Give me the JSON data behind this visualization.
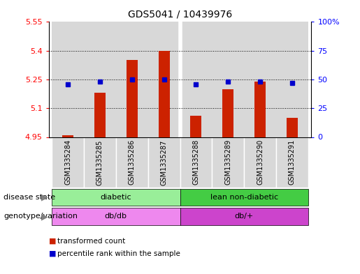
{
  "title": "GDS5041 / 10439976",
  "samples": [
    "GSM1335284",
    "GSM1335285",
    "GSM1335286",
    "GSM1335287",
    "GSM1335288",
    "GSM1335289",
    "GSM1335290",
    "GSM1335291"
  ],
  "transformed_count": [
    4.96,
    5.18,
    5.35,
    5.4,
    5.06,
    5.2,
    5.24,
    5.05
  ],
  "percentile_rank": [
    46,
    48,
    50,
    50,
    46,
    48,
    48,
    47
  ],
  "bar_color": "#cc2200",
  "dot_color": "#0000cc",
  "ylim_left": [
    4.95,
    5.55
  ],
  "ylim_right": [
    0,
    100
  ],
  "yticks_left": [
    4.95,
    5.1,
    5.25,
    5.4,
    5.55
  ],
  "yticks_right": [
    0,
    25,
    50,
    75,
    100
  ],
  "ytick_labels_left": [
    "4.95",
    "5.1",
    "5.25",
    "5.4",
    "5.55"
  ],
  "ytick_labels_right": [
    "0",
    "25",
    "50",
    "75",
    "100%"
  ],
  "disease_state_colors": [
    "#99ee99",
    "#44cc44"
  ],
  "genotype_colors": [
    "#ee88ee",
    "#cc44cc"
  ],
  "disease_state_label": "disease state",
  "genotype_label": "genotype/variation",
  "legend_items": [
    "transformed count",
    "percentile rank within the sample"
  ],
  "background_color": "#d8d8d8",
  "bar_width": 0.35,
  "base_value": 4.95
}
